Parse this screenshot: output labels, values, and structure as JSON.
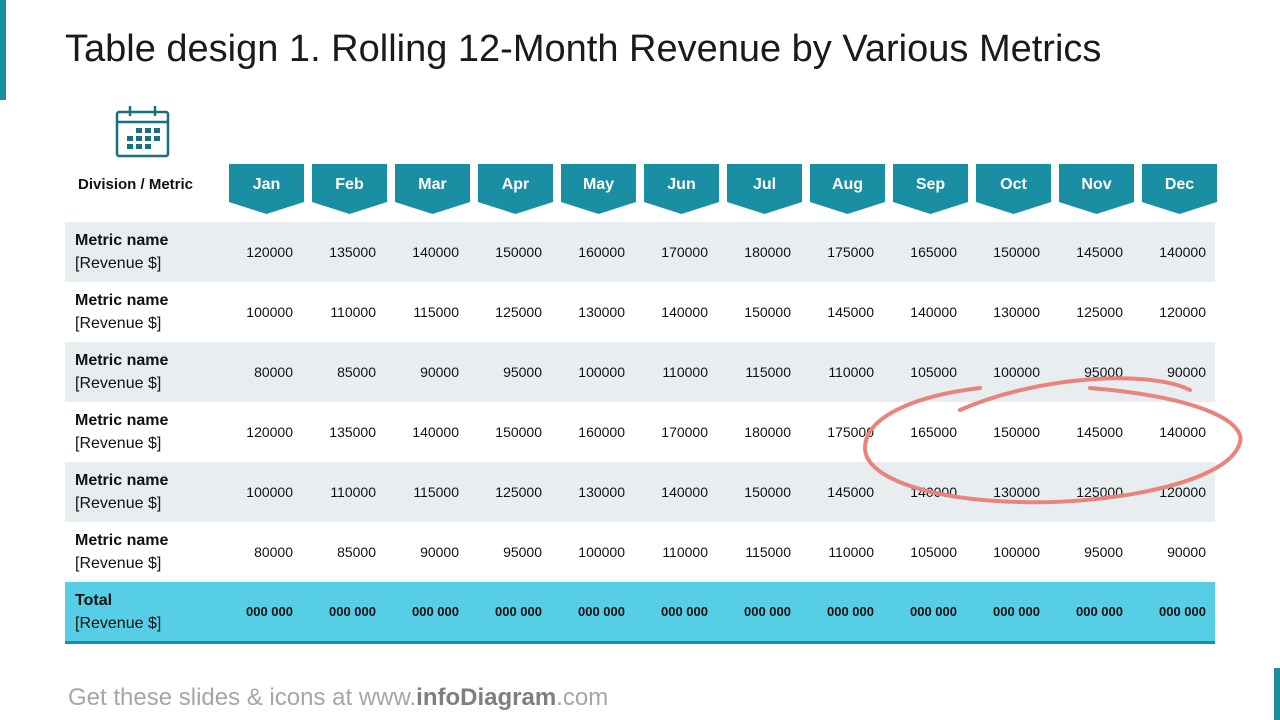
{
  "title": "Table design 1. Rolling 12-Month Revenue by Various Metrics",
  "table": {
    "corner_label": "Division / Metric",
    "months": [
      "Jan",
      "Feb",
      "Mar",
      "Apr",
      "May",
      "Jun",
      "Jul",
      "Aug",
      "Sep",
      "Oct",
      "Nov",
      "Dec"
    ],
    "rows": [
      {
        "name": "Metric name",
        "unit": "[Revenue $]",
        "values": [
          120000,
          135000,
          140000,
          150000,
          160000,
          170000,
          180000,
          175000,
          165000,
          150000,
          145000,
          140000
        ]
      },
      {
        "name": "Metric name",
        "unit": "[Revenue $]",
        "values": [
          100000,
          110000,
          115000,
          125000,
          130000,
          140000,
          150000,
          145000,
          140000,
          130000,
          125000,
          120000
        ]
      },
      {
        "name": "Metric name",
        "unit": "[Revenue $]",
        "values": [
          80000,
          85000,
          90000,
          95000,
          100000,
          110000,
          115000,
          110000,
          105000,
          100000,
          95000,
          90000
        ]
      },
      {
        "name": "Metric name",
        "unit": "[Revenue $]",
        "values": [
          120000,
          135000,
          140000,
          150000,
          160000,
          170000,
          180000,
          175000,
          165000,
          150000,
          145000,
          140000
        ]
      },
      {
        "name": "Metric name",
        "unit": "[Revenue $]",
        "values": [
          100000,
          110000,
          115000,
          125000,
          130000,
          140000,
          150000,
          145000,
          140000,
          130000,
          125000,
          120000
        ]
      },
      {
        "name": "Metric name",
        "unit": "[Revenue $]",
        "values": [
          80000,
          85000,
          90000,
          95000,
          100000,
          110000,
          115000,
          110000,
          105000,
          100000,
          95000,
          90000
        ]
      }
    ],
    "total": {
      "name": "Total",
      "unit": "[Revenue $]",
      "values": [
        "000 000",
        "000 000",
        "000 000",
        "000 000",
        "000 000",
        "000 000",
        "000 000",
        "000 000",
        "000 000",
        "000 000",
        "000 000",
        "000 000"
      ]
    }
  },
  "footer": {
    "prefix": "Get these slides & icons at www.",
    "brand": "infoDiagram",
    "suffix": ".com"
  }
}
